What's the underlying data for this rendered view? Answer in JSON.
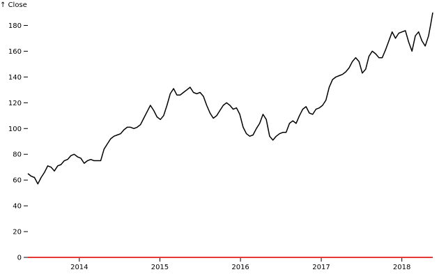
{
  "chart_data": {
    "type": "line",
    "title": "",
    "ylabel": "↑ Close",
    "xlabel": "",
    "ylim": [
      0,
      190
    ],
    "xlim": [
      "2013-05-13",
      "2018-05-21"
    ],
    "y_ticks": [
      0,
      20,
      40,
      60,
      80,
      100,
      120,
      140,
      160,
      180
    ],
    "y_tick_labels": [
      "0",
      "20",
      "40",
      "60",
      "80",
      "100",
      "120",
      "140",
      "160",
      "180"
    ],
    "x_ticks": [
      "2014-01-01",
      "2015-01-01",
      "2016-01-01",
      "2017-01-01",
      "2018-01-01"
    ],
    "x_tick_labels": [
      "2014",
      "2015",
      "2016",
      "2017",
      "2018"
    ],
    "grid": false,
    "line_color": "#000000",
    "baseline_color": "#e53935",
    "series": [
      {
        "x": [
          "2013-05-13",
          "2013-05-28",
          "2013-06-12",
          "2013-06-27",
          "2013-07-12",
          "2013-07-27",
          "2013-08-11",
          "2013-08-26",
          "2013-09-10",
          "2013-09-25",
          "2013-10-10",
          "2013-10-25",
          "2013-11-09",
          "2013-11-24",
          "2013-12-09",
          "2013-12-24",
          "2014-01-08",
          "2014-01-23",
          "2014-02-07",
          "2014-02-22",
          "2014-03-09",
          "2014-03-24",
          "2014-04-08",
          "2014-04-23",
          "2014-05-08",
          "2014-05-23",
          "2014-06-07",
          "2014-06-22",
          "2014-07-07",
          "2014-07-22",
          "2014-08-06",
          "2014-08-21",
          "2014-09-05",
          "2014-09-20",
          "2014-10-05",
          "2014-10-20",
          "2014-11-04",
          "2014-11-19",
          "2014-12-04",
          "2014-12-19",
          "2015-01-03",
          "2015-01-18",
          "2015-02-02",
          "2015-02-17",
          "2015-03-04",
          "2015-03-19",
          "2015-04-03",
          "2015-04-18",
          "2015-05-03",
          "2015-05-18",
          "2015-06-02",
          "2015-06-17",
          "2015-07-02",
          "2015-07-17",
          "2015-08-01",
          "2015-08-16",
          "2015-08-31",
          "2015-09-15",
          "2015-09-30",
          "2015-10-15",
          "2015-10-30",
          "2015-11-14",
          "2015-11-29",
          "2015-12-14",
          "2015-12-29",
          "2016-01-13",
          "2016-01-28",
          "2016-02-12",
          "2016-02-27",
          "2016-03-13",
          "2016-03-28",
          "2016-04-12",
          "2016-04-27",
          "2016-05-12",
          "2016-05-27",
          "2016-06-11",
          "2016-06-26",
          "2016-07-11",
          "2016-07-26",
          "2016-08-10",
          "2016-08-25",
          "2016-09-09",
          "2016-09-24",
          "2016-10-09",
          "2016-10-24",
          "2016-11-08",
          "2016-11-23",
          "2016-12-08",
          "2016-12-23",
          "2017-01-07",
          "2017-01-22",
          "2017-02-06",
          "2017-02-21",
          "2017-03-08",
          "2017-03-23",
          "2017-04-07",
          "2017-04-22",
          "2017-05-07",
          "2017-05-22",
          "2017-06-06",
          "2017-06-21",
          "2017-07-06",
          "2017-07-21",
          "2017-08-05",
          "2017-08-20",
          "2017-09-04",
          "2017-09-19",
          "2017-10-04",
          "2017-10-19",
          "2017-11-03",
          "2017-11-18",
          "2017-12-03",
          "2017-12-18",
          "2018-01-02",
          "2018-01-17",
          "2018-02-01",
          "2018-02-16",
          "2018-03-03",
          "2018-03-18",
          "2018-04-02",
          "2018-04-17",
          "2018-05-02",
          "2018-05-12",
          "2018-05-21"
        ],
        "values": [
          65,
          63,
          62,
          57,
          62,
          66,
          71,
          70,
          67,
          71,
          72,
          75,
          76,
          79,
          80,
          78,
          77,
          73,
          75,
          76,
          75,
          75,
          75,
          84,
          88,
          92,
          94,
          95,
          96,
          99,
          101,
          101,
          100,
          101,
          103,
          108,
          113,
          118,
          114,
          109,
          107,
          110,
          118,
          127,
          131,
          126,
          126,
          128,
          130,
          132,
          128,
          127,
          128,
          125,
          118,
          112,
          108,
          110,
          114,
          118,
          120,
          118,
          115,
          116,
          111,
          101,
          96,
          94,
          95,
          100,
          104,
          111,
          107,
          94,
          91,
          94,
          96,
          97,
          97,
          104,
          106,
          104,
          110,
          115,
          117,
          112,
          111,
          115,
          116,
          118,
          122,
          132,
          138,
          140,
          141,
          142,
          144,
          147,
          152,
          155,
          152,
          143,
          146,
          156,
          160,
          158,
          155,
          155,
          161,
          168,
          175,
          170,
          174,
          175,
          176,
          167,
          160,
          172,
          175,
          168,
          164,
          172,
          181,
          190
        ]
      }
    ]
  }
}
